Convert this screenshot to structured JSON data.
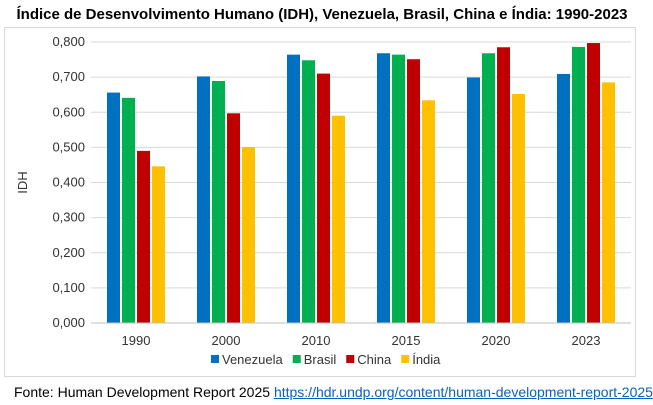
{
  "chart_data": {
    "type": "bar",
    "title": "Índice de Desenvolvimento Humano (IDH), Venezuela, Brasil, China e Índia: 1990-2023",
    "xlabel": "",
    "ylabel": "IDH",
    "categories": [
      "1990",
      "2000",
      "2010",
      "2015",
      "2020",
      "2023"
    ],
    "ylim": [
      0,
      0.8
    ],
    "yticks": [
      "0,000",
      "0,100",
      "0,200",
      "0,300",
      "0,400",
      "0,500",
      "0,600",
      "0,700",
      "0,800"
    ],
    "grid": true,
    "legend_position": "bottom",
    "series": [
      {
        "name": "Venezuela",
        "color": "#0070c0",
        "values": [
          0.656,
          0.702,
          0.764,
          0.768,
          0.699,
          0.709
        ]
      },
      {
        "name": "Brasil",
        "color": "#00b050",
        "values": [
          0.641,
          0.689,
          0.748,
          0.764,
          0.768,
          0.786
        ]
      },
      {
        "name": "China",
        "color": "#c00000",
        "values": [
          0.49,
          0.597,
          0.71,
          0.751,
          0.785,
          0.797
        ]
      },
      {
        "name": "Índia",
        "color": "#ffc000",
        "values": [
          0.446,
          0.501,
          0.59,
          0.634,
          0.652,
          0.685
        ]
      }
    ]
  },
  "source": {
    "label": "Fonte: Human Development Report 2025",
    "link_text": "https://hdr.undp.org/content/human-development-report-2025"
  }
}
